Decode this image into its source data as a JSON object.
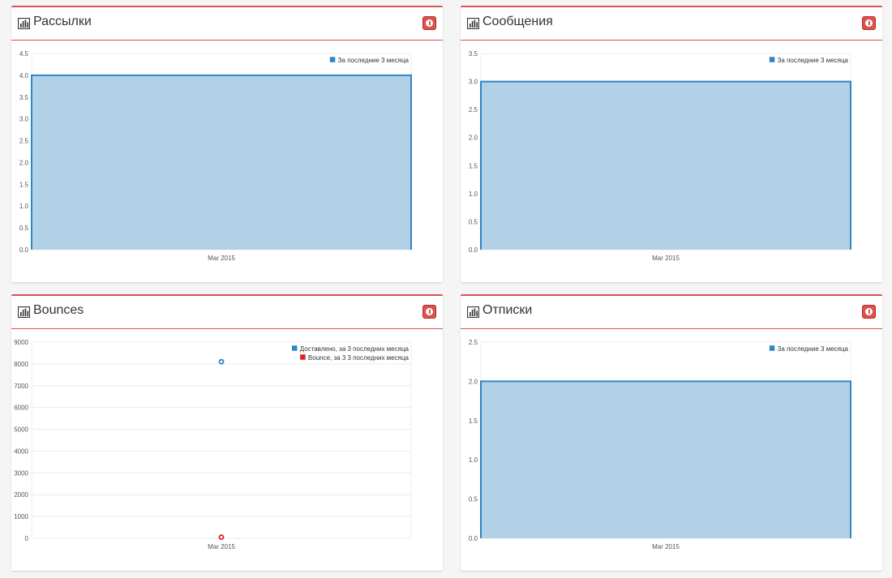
{
  "panels": [
    {
      "id": "mailings",
      "title": "Рассылки",
      "chart_data": {
        "type": "area",
        "categories": [
          "Mar 2015"
        ],
        "series": [
          {
            "name": "За последние 3 месяца",
            "values": [
              4.0
            ],
            "color": "#2f86c4",
            "fill": "#b3d1e6"
          }
        ],
        "ylim": [
          0,
          4.5
        ],
        "yticks": [
          "0.0",
          "0.5",
          "1.0",
          "1.5",
          "2.0",
          "2.5",
          "3.0",
          "3.5",
          "4.0",
          "4.5"
        ],
        "legend": "top-right",
        "grid": true
      }
    },
    {
      "id": "messages",
      "title": "Сообщения",
      "chart_data": {
        "type": "area",
        "categories": [
          "Mar 2015"
        ],
        "series": [
          {
            "name": "За последние 3 месяца",
            "values": [
              3.0
            ],
            "color": "#2f86c4",
            "fill": "#b3d1e6"
          }
        ],
        "ylim": [
          0,
          3.5
        ],
        "yticks": [
          "0.0",
          "0.5",
          "1.0",
          "1.5",
          "2.0",
          "2.5",
          "3.0",
          "3.5"
        ],
        "legend": "top-right",
        "grid": true
      }
    },
    {
      "id": "bounces",
      "title": "Bounces",
      "chart_data": {
        "type": "scatter",
        "categories": [
          "Mar 2015"
        ],
        "series": [
          {
            "name": "Доставлено, за 3 последних месяца",
            "values": [
              8100
            ],
            "color": "#2f86c4"
          },
          {
            "name": "Bounce, за 3 3 последних месяца",
            "values": [
              50
            ],
            "color": "#e02020"
          }
        ],
        "ylim": [
          0,
          9000
        ],
        "yticks": [
          "0",
          "1000",
          "2000",
          "3000",
          "4000",
          "5000",
          "6000",
          "7000",
          "8000",
          "9000"
        ],
        "legend": "top-right",
        "grid": true
      }
    },
    {
      "id": "unsubscribes",
      "title": "Отписки",
      "chart_data": {
        "type": "area",
        "categories": [
          "Mar 2015"
        ],
        "series": [
          {
            "name": "За последние 3 месяца",
            "values": [
              2.0
            ],
            "color": "#2f86c4",
            "fill": "#b3d1e6"
          }
        ],
        "ylim": [
          0,
          2.5
        ],
        "yticks": [
          "0.0",
          "0.5",
          "1.0",
          "1.5",
          "2.0",
          "2.5"
        ],
        "legend": "top-right",
        "grid": true
      }
    }
  ]
}
